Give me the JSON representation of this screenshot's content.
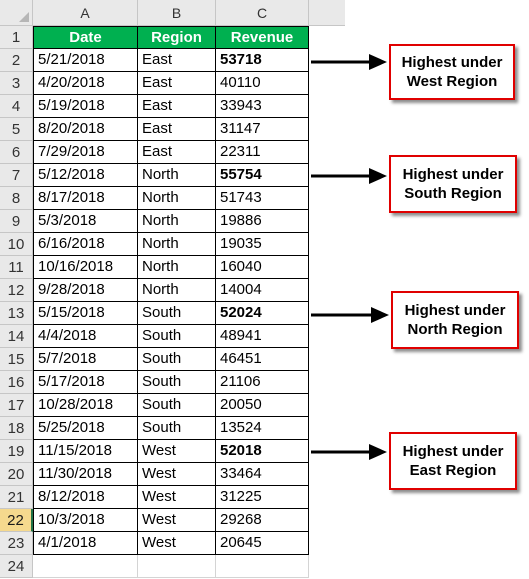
{
  "sheet": {
    "columns": [
      "A",
      "B",
      "C"
    ],
    "rows": [
      "1",
      "2",
      "3",
      "4",
      "5",
      "6",
      "7",
      "8",
      "9",
      "10",
      "11",
      "12",
      "13",
      "14",
      "15",
      "16",
      "17",
      "18",
      "19",
      "20",
      "21",
      "22",
      "23",
      "24"
    ],
    "active_row": "22",
    "header": {
      "date": "Date",
      "region": "Region",
      "revenue": "Revenue"
    },
    "data": [
      {
        "date": "5/21/2018",
        "region": "East",
        "revenue": "53718"
      },
      {
        "date": "4/20/2018",
        "region": "East",
        "revenue": "40110"
      },
      {
        "date": "5/19/2018",
        "region": "East",
        "revenue": "33943"
      },
      {
        "date": "8/20/2018",
        "region": "East",
        "revenue": "31147"
      },
      {
        "date": "7/29/2018",
        "region": "East",
        "revenue": "22311"
      },
      {
        "date": "5/12/2018",
        "region": "North",
        "revenue": "55754"
      },
      {
        "date": "8/17/2018",
        "region": "North",
        "revenue": "51743"
      },
      {
        "date": "5/3/2018",
        "region": "North",
        "revenue": "19886"
      },
      {
        "date": "6/16/2018",
        "region": "North",
        "revenue": "19035"
      },
      {
        "date": "10/16/2018",
        "region": "North",
        "revenue": "16040"
      },
      {
        "date": "9/28/2018",
        "region": "North",
        "revenue": "14004"
      },
      {
        "date": "5/15/2018",
        "region": "South",
        "revenue": "52024"
      },
      {
        "date": "4/4/2018",
        "region": "South",
        "revenue": "48941"
      },
      {
        "date": "5/7/2018",
        "region": "South",
        "revenue": "46451"
      },
      {
        "date": "5/17/2018",
        "region": "South",
        "revenue": "21106"
      },
      {
        "date": "10/28/2018",
        "region": "South",
        "revenue": "20050"
      },
      {
        "date": "5/25/2018",
        "region": "South",
        "revenue": "13524"
      },
      {
        "date": "11/15/2018",
        "region": "West",
        "revenue": "52018"
      },
      {
        "date": "11/30/2018",
        "region": "West",
        "revenue": "33464"
      },
      {
        "date": "8/12/2018",
        "region": "West",
        "revenue": "31225"
      },
      {
        "date": "10/3/2018",
        "region": "West",
        "revenue": "29268"
      },
      {
        "date": "4/1/2018",
        "region": "West",
        "revenue": "20645"
      }
    ],
    "bold_rows": [
      0,
      5,
      11,
      17
    ]
  },
  "callouts": [
    {
      "line1": "Highest under",
      "line2": "West Region"
    },
    {
      "line1": "Highest under",
      "line2": "South Region"
    },
    {
      "line1": "Highest under",
      "line2": "North Region"
    },
    {
      "line1": "Highest under",
      "line2": "East Region"
    }
  ],
  "colors": {
    "header_fill": "#00b050",
    "callout_border": "#e00000",
    "active_row_header": "#f5d98e"
  }
}
